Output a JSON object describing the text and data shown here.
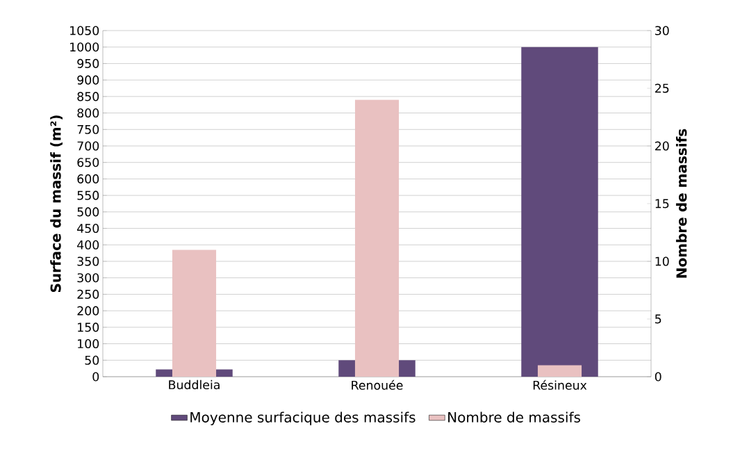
{
  "chart_data": {
    "type": "bar",
    "categories": [
      "Buddleia",
      "Renouée",
      "Résineux"
    ],
    "series": [
      {
        "name": "Moyenne surfacique des massifs",
        "color": "#604a7b",
        "values": [
          22,
          50,
          1000
        ]
      },
      {
        "name": "Nombre de massifs",
        "color": "#e9c1c1",
        "values": [
          11,
          24,
          1
        ],
        "axis": "y2"
      }
    ],
    "ylabel": "Surface du massif (m²)",
    "y2label": "Nombre de massifs",
    "ylim": [
      0,
      1050
    ],
    "yticks": [
      0,
      50,
      100,
      150,
      200,
      250,
      300,
      350,
      400,
      450,
      500,
      550,
      600,
      650,
      700,
      750,
      800,
      850,
      900,
      950,
      1000,
      1050
    ],
    "y2lim": [
      0,
      30
    ],
    "y2ticks": [
      0,
      5,
      10,
      15,
      20,
      25,
      30
    ],
    "grid": "y",
    "legend": "bottom"
  }
}
